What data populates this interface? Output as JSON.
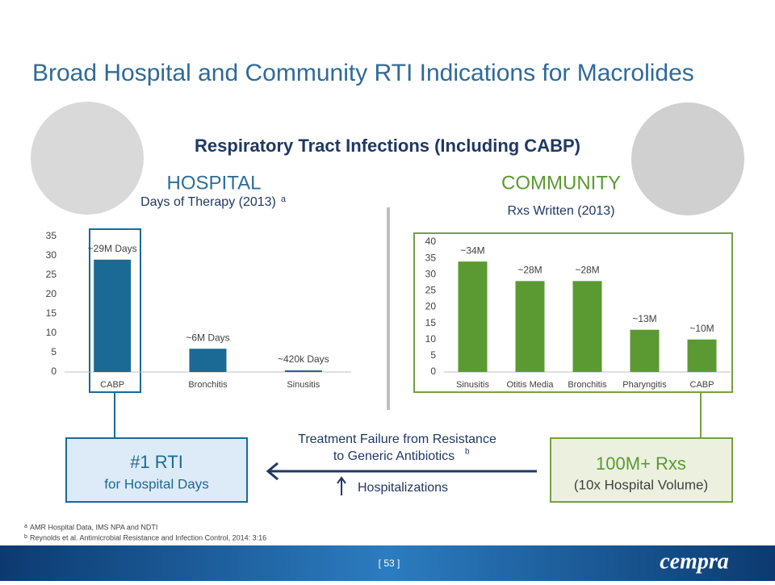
{
  "title": "Broad Hospital and Community RTI Indications for Macrolides",
  "subtitle": "Respiratory Tract Infections (Including CABP)",
  "chart_data": [
    {
      "type": "bar",
      "title": "HOSPITAL",
      "subtitle": "Days of Therapy (2013)",
      "subtitle_note": "a",
      "categories": [
        "CABP",
        "Bronchitis",
        "Sinusitis"
      ],
      "values": [
        29,
        6,
        0.42
      ],
      "value_labels": [
        "~29M Days",
        "~6M Days",
        "~420k Days"
      ],
      "color": "#1b6a96",
      "ylim": [
        0,
        35
      ],
      "yticks": [
        0,
        5,
        10,
        15,
        20,
        25,
        30,
        35
      ]
    },
    {
      "type": "bar",
      "title": "COMMUNITY",
      "subtitle": "Rxs Written (2013)",
      "categories": [
        "Sinusitis",
        "Otitis Media",
        "Bronchitis",
        "Pharyngitis",
        "CABP"
      ],
      "values": [
        34,
        28,
        28,
        13,
        10
      ],
      "value_labels": [
        "~34M",
        "~28M",
        "~28M",
        "~13M",
        "~10M"
      ],
      "color": "#5b9a32",
      "ylim": [
        0,
        40
      ],
      "yticks": [
        0,
        5,
        10,
        15,
        20,
        25,
        30,
        35,
        40
      ]
    }
  ],
  "callouts": {
    "hospital": {
      "title": "#1 RTI",
      "text": "for Hospital Days"
    },
    "community": {
      "title": "100M+ Rxs",
      "text": "(10x Hospital Volume)"
    }
  },
  "arrow_text": {
    "line1": "Treatment Failure from Resistance",
    "line2": "to Generic Antibiotics",
    "note": "b",
    "line3": "Hospitalizations"
  },
  "footnotes": [
    {
      "mark": "a",
      "text": "AMR Hospital  Data, IMS NPA and NDTI"
    },
    {
      "mark": "b",
      "text": "Reynolds et al. Antimicrobial Resistance and Infection Control, 2014: 3:16"
    }
  ],
  "page_number": "[ 53 ]",
  "logo": "cempra"
}
